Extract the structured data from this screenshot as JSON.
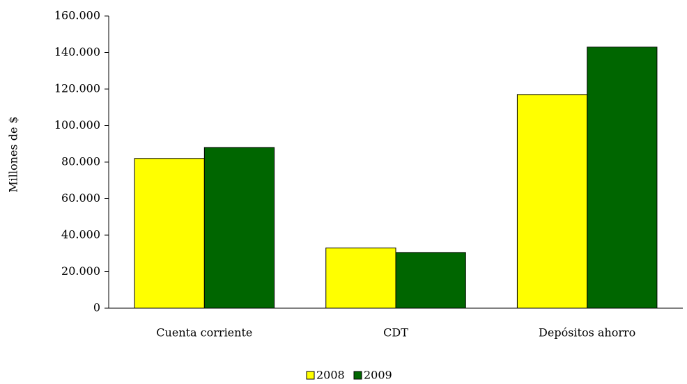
{
  "chart_data": {
    "type": "bar",
    "y_label": "Millones de $",
    "categories": [
      "Cuenta corriente",
      "CDT",
      "Depósitos ahorro"
    ],
    "series": [
      {
        "name": "2008",
        "color": "#ffff00",
        "values": [
          82000,
          33000,
          117000
        ]
      },
      {
        "name": "2009",
        "color": "#006600",
        "values": [
          88000,
          30500,
          143000
        ]
      }
    ],
    "ylim": [
      0,
      160000
    ],
    "yticks": [
      0,
      {
        "value": 20000,
        "label": "20.000"
      },
      {
        "value": 40000,
        "label": "40.000"
      },
      {
        "value": 60000,
        "label": "60.000"
      },
      {
        "value": 80000,
        "label": "80.000"
      },
      {
        "value": 100000,
        "label": "100.000"
      },
      {
        "value": 120000,
        "label": "120.000"
      },
      {
        "value": 140000,
        "label": "140.000"
      },
      {
        "value": 160000,
        "label": "160.000"
      }
    ],
    "legend": "bottom"
  }
}
